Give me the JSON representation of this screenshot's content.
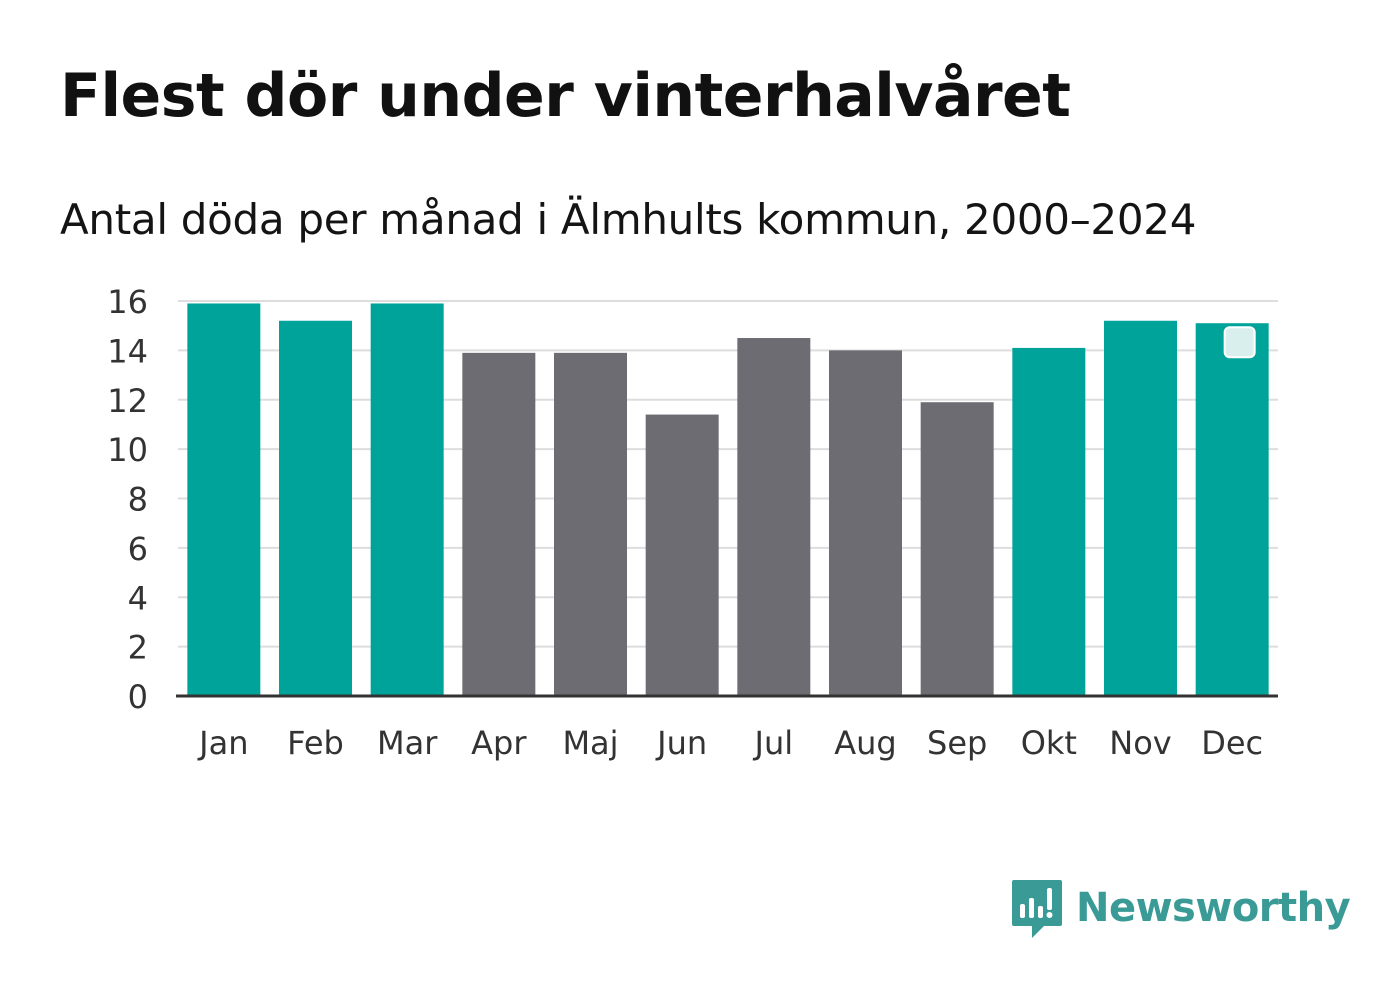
{
  "header": {
    "title": "Flest dör under vinterhalvåret",
    "subtitle": "Antal döda per månad i Älmhults kommun, 2000–2024"
  },
  "brand": {
    "name": "Newsworthy",
    "color": "#3a9a96"
  },
  "colors": {
    "winter": "#00a39a",
    "summer": "#6d6c72",
    "grid": "#dddddd",
    "axis": "#333333"
  },
  "chart_data": {
    "type": "bar",
    "title": "Flest dör under vinterhalvåret",
    "subtitle": "Antal döda per månad i Älmhults kommun, 2000–2024",
    "xlabel": "",
    "ylabel": "",
    "ylim": [
      0,
      16
    ],
    "yticks": [
      0,
      2,
      4,
      6,
      8,
      10,
      12,
      14,
      16
    ],
    "grid": true,
    "categories": [
      "Jan",
      "Feb",
      "Mar",
      "Apr",
      "Maj",
      "Jun",
      "Jul",
      "Aug",
      "Sep",
      "Okt",
      "Nov",
      "Dec"
    ],
    "values": [
      15.9,
      15.2,
      15.9,
      13.9,
      13.9,
      11.4,
      14.5,
      14.0,
      11.9,
      14.1,
      15.2,
      15.1
    ],
    "groups": [
      "winter",
      "winter",
      "winter",
      "summer",
      "summer",
      "summer",
      "summer",
      "summer",
      "summer",
      "winter",
      "winter",
      "winter"
    ]
  }
}
